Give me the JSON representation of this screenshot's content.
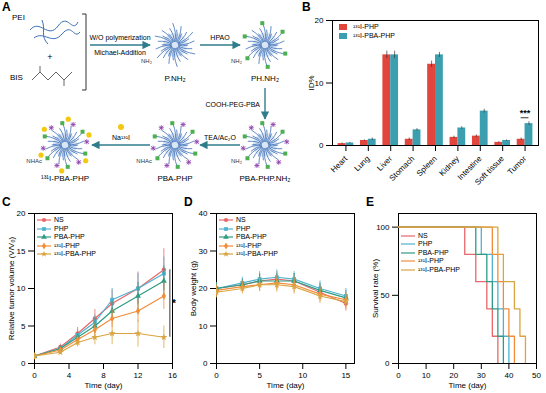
{
  "diagram": {
    "panel": "A",
    "reagents": [
      "PEI",
      "BIS"
    ],
    "plus": "+",
    "nodes": [
      {
        "label": "P.NH₂",
        "group": "NH₂"
      },
      {
        "label": "PH.NH₂",
        "group": "NH₂"
      },
      {
        "label": "PBA-PHP.NH₂",
        "group": "NH₂"
      },
      {
        "label": "PBA-PHP",
        "group": "NHAc"
      },
      {
        "label": "¹³¹I-PBA-PHP",
        "group": "NHAc"
      }
    ],
    "arrows": [
      {
        "above": "W/O polymerization",
        "below": "Michael-Addition"
      },
      {
        "above": "HPAO"
      },
      {
        "above": "COOH-PEG-PBA"
      },
      {
        "above": "TEA/Ac₂O"
      },
      {
        "above": "Na¹³¹I"
      }
    ]
  },
  "chart_data": [
    {
      "panel": "B",
      "type": "bar",
      "ylabel": "ID%",
      "categories": [
        "Heart",
        "Lung",
        "Liver",
        "Stomach",
        "Spleen",
        "Kidney",
        "Intestine",
        "Soft tissue",
        "Tumor"
      ],
      "ylim": [
        0,
        20
      ],
      "yticks": [
        0,
        10,
        20
      ],
      "legend": "top-left",
      "series": [
        {
          "name": "¹³¹I-PHP",
          "color": "#e2453c",
          "values": [
            0.3,
            0.8,
            14.5,
            1.0,
            13.0,
            1.3,
            1.5,
            0.5,
            1.0
          ],
          "errors": [
            0.1,
            0.1,
            0.6,
            0.2,
            0.5,
            0.2,
            0.2,
            0.1,
            0.2
          ]
        },
        {
          "name": "¹³¹I-PBA-PHP",
          "color": "#3c9fb0",
          "values": [
            0.4,
            1.0,
            14.5,
            2.5,
            14.5,
            2.8,
            5.5,
            0.8,
            3.5
          ],
          "errors": [
            0.1,
            0.2,
            0.6,
            0.2,
            0.4,
            0.2,
            0.3,
            0.1,
            0.3
          ]
        }
      ],
      "annotations": [
        {
          "text": "***",
          "category": "Tumor"
        }
      ]
    },
    {
      "panel": "C",
      "type": "line",
      "xlabel": "Time (day)",
      "ylabel": "Relative tumor volume (V/V₀)",
      "x": [
        0,
        3,
        5,
        7,
        9,
        12,
        15
      ],
      "xlim": [
        0,
        16
      ],
      "xticks": [
        0,
        4,
        8,
        12,
        16
      ],
      "ylim": [
        0,
        20
      ],
      "yticks": [
        0,
        5,
        10,
        15,
        20
      ],
      "legend": "top-left",
      "series": [
        {
          "name": "NS",
          "color": "#e8676b",
          "marker": "circle",
          "values": [
            1,
            2.2,
            4,
            6,
            8,
            10,
            12.5
          ],
          "errors": [
            0.1,
            0.4,
            0.8,
            1.2,
            1.8,
            2.2,
            2.8
          ]
        },
        {
          "name": "PHP",
          "color": "#4fb3d0",
          "marker": "square",
          "values": [
            1,
            2.0,
            3.8,
            5.5,
            8.5,
            10,
            12
          ],
          "errors": [
            0.1,
            0.3,
            0.7,
            1.0,
            1.5,
            2.0,
            2.2
          ]
        },
        {
          "name": "PBA-PHP",
          "color": "#2e9b82",
          "marker": "triangle",
          "values": [
            1,
            2.0,
            3.5,
            5.0,
            7,
            9,
            11
          ],
          "errors": [
            0.1,
            0.3,
            0.6,
            1.0,
            1.3,
            1.8,
            2.0
          ]
        },
        {
          "name": "¹³¹I-PHP",
          "color": "#f28c38",
          "marker": "diamond",
          "values": [
            1,
            1.8,
            3.2,
            4.5,
            6,
            7,
            9
          ],
          "errors": [
            0.1,
            0.3,
            0.5,
            0.8,
            1.2,
            1.5,
            1.8
          ]
        },
        {
          "name": "¹³¹I-PBA-PHP",
          "color": "#d9a441",
          "marker": "star",
          "values": [
            1,
            1.5,
            2.8,
            3.5,
            4,
            4,
            3.5
          ],
          "errors": [
            0.1,
            0.3,
            0.6,
            1.0,
            1.5,
            1.8,
            1.5
          ]
        }
      ],
      "annotations": [
        {
          "text": "*",
          "between": [
            "NS",
            "¹³¹I-PBA-PHP"
          ]
        }
      ]
    },
    {
      "panel": "D",
      "type": "line",
      "xlabel": "Time (day)",
      "ylabel": "Body weight (g)",
      "x": [
        0,
        3,
        5,
        7,
        9,
        12,
        15
      ],
      "xlim": [
        0,
        16
      ],
      "xticks": [
        0,
        5,
        10,
        15
      ],
      "ylim": [
        0,
        40
      ],
      "yticks": [
        0,
        10,
        20,
        30,
        40
      ],
      "legend": "top-left",
      "series": [
        {
          "name": "NS",
          "color": "#e8676b",
          "marker": "circle",
          "values": [
            20,
            21,
            22,
            22.5,
            22,
            19,
            16
          ],
          "errors": [
            1.5,
            1.5,
            2,
            2,
            2,
            2,
            2
          ]
        },
        {
          "name": "PHP",
          "color": "#4fb3d0",
          "marker": "square",
          "values": [
            20,
            21.5,
            22.5,
            23,
            22.5,
            20,
            18
          ],
          "errors": [
            1.5,
            1.5,
            2,
            2,
            2,
            2,
            2
          ]
        },
        {
          "name": "PBA-PHP",
          "color": "#2e9b82",
          "marker": "triangle",
          "values": [
            20,
            21,
            22,
            22,
            22,
            19.5,
            17.5
          ],
          "errors": [
            1.5,
            1.5,
            1.8,
            2,
            2,
            2,
            2
          ]
        },
        {
          "name": "¹³¹I-PHP",
          "color": "#f28c38",
          "marker": "diamond",
          "values": [
            19.5,
            20.5,
            21,
            21.5,
            21,
            18.5,
            17
          ],
          "errors": [
            1.5,
            1.5,
            1.8,
            2,
            2,
            2,
            2
          ]
        },
        {
          "name": "¹³¹I-PBA-PHP",
          "color": "#d9a441",
          "marker": "star",
          "values": [
            19,
            20,
            21,
            21,
            20.5,
            18,
            16.5
          ],
          "errors": [
            1.5,
            1.5,
            1.8,
            2,
            2,
            2,
            2
          ]
        }
      ]
    },
    {
      "panel": "E",
      "type": "step",
      "xlabel": "Time (day)",
      "ylabel": "Survival rate (%)",
      "xlim": [
        0,
        50
      ],
      "xticks": [
        0,
        10,
        20,
        30,
        40,
        50
      ],
      "ylim": [
        0,
        110
      ],
      "yticks": [
        0,
        50,
        100
      ],
      "legend": "top-left",
      "series": [
        {
          "name": "NS",
          "color": "#e8676b",
          "x": [
            0,
            24,
            28,
            32,
            34,
            36
          ],
          "values": [
            100,
            80,
            60,
            40,
            20,
            0
          ]
        },
        {
          "name": "PHP",
          "color": "#4fb3d0",
          "x": [
            0,
            30,
            34,
            36,
            38,
            40
          ],
          "values": [
            100,
            80,
            60,
            40,
            20,
            0
          ]
        },
        {
          "name": "PBA-PHP",
          "color": "#2e9b82",
          "x": [
            0,
            28,
            32,
            34,
            36,
            38
          ],
          "values": [
            100,
            80,
            60,
            40,
            20,
            0
          ]
        },
        {
          "name": "¹³¹I-PHP",
          "color": "#f28c38",
          "x": [
            0,
            34,
            36,
            38,
            40,
            42
          ],
          "values": [
            100,
            80,
            60,
            40,
            20,
            0
          ]
        },
        {
          "name": "¹³¹I-PBA-PHP",
          "color": "#d9a441",
          "x": [
            0,
            36,
            38,
            42,
            44,
            46
          ],
          "values": [
            100,
            80,
            60,
            40,
            20,
            0
          ]
        }
      ]
    }
  ]
}
